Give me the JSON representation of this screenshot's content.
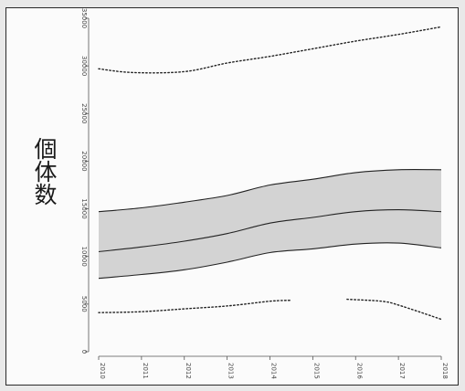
{
  "chart_data": {
    "type": "area",
    "title": "",
    "xlabel": "",
    "ylabel": "個体数",
    "x": [
      2010,
      2011,
      2012,
      2013,
      2014,
      2015,
      2016,
      2017,
      2018
    ],
    "ylim": [
      0,
      35000
    ],
    "yticks": [
      0,
      5000,
      10000,
      15000,
      20000,
      25000,
      30000,
      35000
    ],
    "grid": false,
    "series": [
      {
        "role": "upper-dotted",
        "style": "dotted",
        "points": [
          [
            2010,
            29700
          ],
          [
            2010.8,
            29300
          ],
          [
            2012,
            29400
          ],
          [
            2013,
            30300
          ],
          [
            2014,
            31000
          ],
          [
            2015,
            31800
          ],
          [
            2016,
            32600
          ],
          [
            2017,
            33300
          ],
          [
            2018,
            34100
          ]
        ]
      },
      {
        "role": "band-upper",
        "style": "solid",
        "values": [
          14700,
          15100,
          15700,
          16400,
          17500,
          18100,
          18800,
          19100,
          19100
        ]
      },
      {
        "role": "median",
        "style": "solid",
        "values": [
          10500,
          11000,
          11600,
          12400,
          13500,
          14100,
          14700,
          14900,
          14700
        ]
      },
      {
        "role": "band-lower",
        "style": "solid",
        "values": [
          7700,
          8100,
          8600,
          9400,
          10400,
          10800,
          11300,
          11400,
          10900
        ]
      },
      {
        "role": "lower-dotted",
        "style": "dotted",
        "points": [
          [
            2010,
            4100
          ],
          [
            2011,
            4200
          ],
          [
            2012,
            4500
          ],
          [
            2013,
            4800
          ],
          [
            2014,
            5300
          ],
          [
            2014.5,
            5400
          ]
        ]
      },
      {
        "role": "lower-dotted",
        "style": "dotted",
        "points": [
          [
            2015.8,
            5500
          ],
          [
            2016.6,
            5300
          ],
          [
            2017,
            4900
          ],
          [
            2018,
            3400
          ]
        ]
      }
    ],
    "band_fill": "#d3d3d3",
    "line_color": "#222222"
  }
}
